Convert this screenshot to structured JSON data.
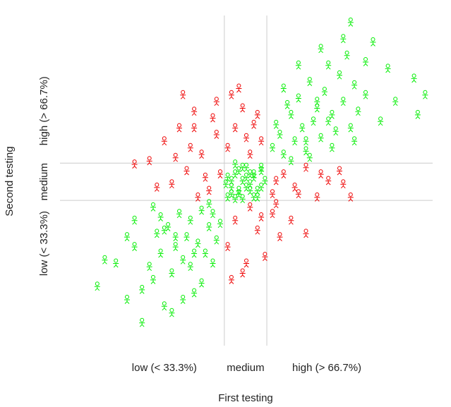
{
  "chart_data": {
    "type": "scatter",
    "x_axis_label": "First testing",
    "y_axis_label": "Second testing",
    "x_categories": [
      "low (< 33.3%)",
      "medium",
      "high (> 66.7%)"
    ],
    "y_categories": [
      "low (< 33.3%)",
      "medium",
      "high (> 66.7%)"
    ],
    "xlim": [
      0,
      100
    ],
    "ylim": [
      0,
      100
    ],
    "xlines": [
      44.1,
      55.5
    ],
    "ylines": [
      44,
      55.3
    ],
    "line_color": "#cccccc",
    "series": [
      {
        "color": "#00ee00",
        "x": [
          10,
          12,
          15,
          18,
          20,
          22,
          24,
          25,
          26,
          27,
          28,
          29,
          30,
          31,
          32,
          33,
          34,
          35,
          36,
          37,
          38,
          39,
          40,
          41,
          42,
          43,
          30,
          25,
          20,
          35,
          38,
          28,
          33,
          40,
          22,
          18,
          27,
          36,
          41,
          31,
          45,
          46,
          47,
          48,
          49,
          50,
          51,
          52,
          53,
          54,
          45,
          47,
          49,
          51,
          53,
          55,
          46,
          48,
          50,
          52,
          54,
          44.5,
          46,
          48,
          50,
          52,
          54,
          47,
          49,
          51,
          57,
          59,
          60,
          62,
          63,
          64,
          65,
          66,
          67,
          68,
          69,
          70,
          71,
          72,
          73,
          74,
          75,
          76,
          77,
          78,
          79,
          80,
          82,
          84,
          86,
          88,
          90,
          95,
          98,
          96,
          58,
          61,
          64,
          67,
          70,
          73,
          76,
          79,
          82,
          60,
          66,
          72,
          78,
          62,
          69
        ],
        "values": [
          18,
          26,
          25,
          14,
          30,
          7,
          24,
          20,
          34,
          28,
          12,
          36,
          22,
          30,
          40,
          26,
          33,
          38,
          16,
          31,
          41,
          28,
          36,
          40,
          32,
          37,
          10,
          42,
          38,
          24,
          19,
          35,
          14,
          43,
          17,
          33,
          39,
          28,
          25,
          33,
          45,
          48,
          52,
          46,
          50,
          54,
          47,
          51,
          45,
          53,
          51,
          55,
          44.5,
          49,
          47,
          50,
          46,
          53,
          48,
          52,
          54,
          49,
          50,
          47,
          51,
          45,
          48,
          44.5,
          54,
          52,
          60,
          64,
          58,
          70,
          62,
          75,
          66,
          59,
          80,
          68,
          72,
          63,
          77,
          85,
          70,
          65,
          82,
          74,
          88,
          98,
          79,
          71,
          76,
          92,
          68,
          84,
          74,
          81,
          76,
          70,
          67,
          73,
          85,
          57,
          90,
          60,
          93,
          62,
          86,
          78,
          62,
          68,
          66,
          56,
          74
        ]
      },
      {
        "color": "#ee0000",
        "x": [
          24,
          28,
          30,
          32,
          34,
          36,
          38,
          40,
          42,
          43,
          33,
          37,
          41,
          39,
          35,
          20,
          26,
          31,
          36,
          42,
          45,
          47,
          49,
          51,
          53,
          46,
          50,
          54,
          48,
          52,
          57,
          60,
          63,
          66,
          69,
          72,
          75,
          78,
          58,
          64,
          70,
          76,
          45,
          47,
          49,
          51,
          53,
          55,
          57,
          59,
          46,
          50,
          54,
          58,
          62,
          66
        ],
        "values": [
          56,
          62,
          49,
          66,
          53,
          71,
          58,
          47,
          64,
          52,
          76,
          45,
          69,
          51,
          60,
          55,
          48,
          57,
          66,
          74,
          60,
          66,
          72,
          58,
          70,
          76,
          63,
          62,
          78,
          67,
          46,
          52,
          48,
          54,
          45,
          50,
          53,
          45,
          50,
          46,
          52,
          49,
          30,
          38,
          22,
          42,
          35,
          27,
          40,
          33,
          20,
          25,
          39,
          43,
          38,
          34
        ]
      }
    ]
  }
}
